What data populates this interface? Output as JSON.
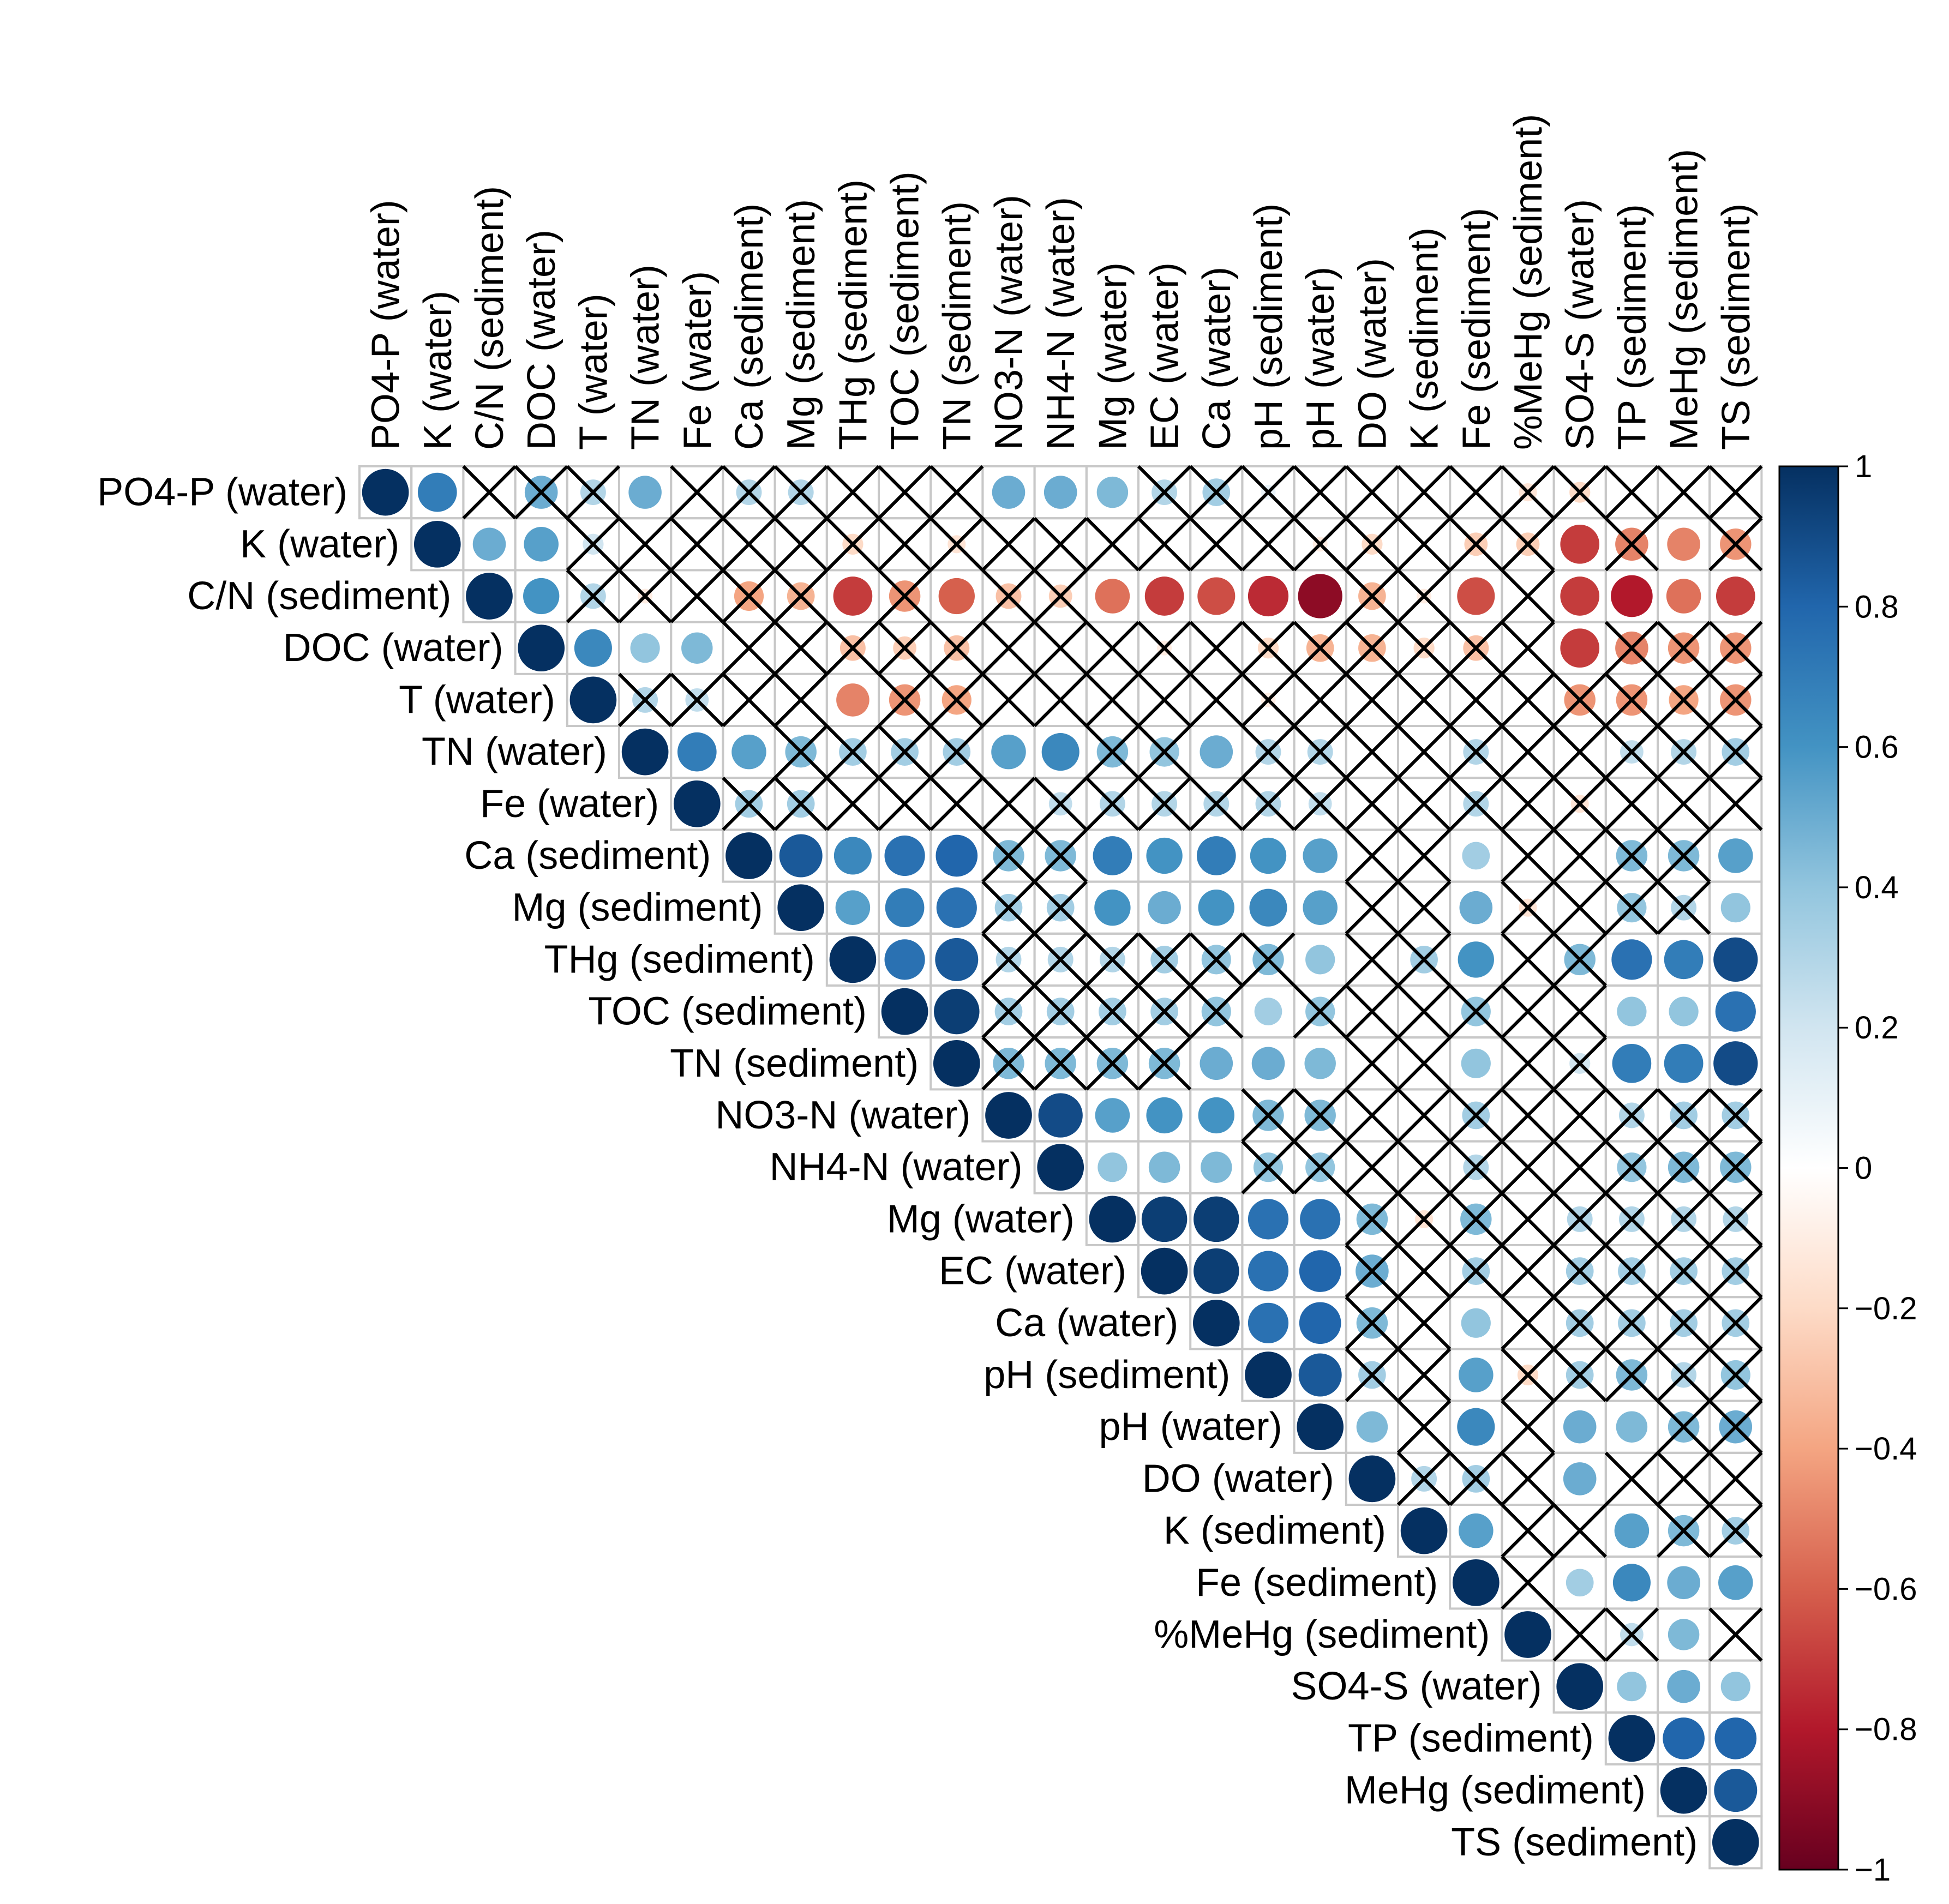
{
  "chart_data": {
    "type": "heatmap",
    "title": "",
    "xlabel": "",
    "ylabel": "",
    "variables": [
      "PO4-P (water)",
      "K (water)",
      "C/N (sediment)",
      "DOC (water)",
      "T (water)",
      "TN (water)",
      "Fe (water)",
      "Ca (sediment)",
      "Mg (sediment)",
      "THg (sediment)",
      "TOC (sediment)",
      "TN (sediment)",
      "NO3-N (water)",
      "NH4-N (water)",
      "Mg (water)",
      "EC (water)",
      "Ca (water)",
      "pH (sediment)",
      "pH (water)",
      "DO (water)",
      "K (sediment)",
      "Fe (sediment)",
      "%MeHg (sediment)",
      "SO4-S (water)",
      "TP (sediment)",
      "MeHg (sediment)",
      "TS (sediment)"
    ],
    "matrix_upper_triangle": [
      "1 0.7 0x 0.5x 0.3x 0.5 0x 0.3x 0.3x 0x 0x 0x 0.5 0.5 0.45 0.3x 0.35x 0.1x 0x 0x 0x 0x -0.15x -0.2x 0x 0x 0x",
      "1 0.5 0.55 0.2x 0x 0x 0x 0x -0.2x 0x -0.15x 0x 0x 0x 0x 0x 0x -0.1x -0.2x 0x -0.25x -0.25x -0.7 -0.5x -0.5 -0.45x",
      "1 0.6 0.3x -0.1x 0x -0.4x -0.35x -0.7 -0.45x -0.6 -0.3x -0.25x -0.55 -0.7 -0.65 -0.75 -0.9 -0.35x -0.1x -0.65 0x -0.7 -0.8 -0.55 -0.7",
      "1 0.65 0.4 0.45 0x 0x -0.3x -0.25x -0.3x 0x 0x 0x -0.1x 0x -0.2x -0.35x -0.35x -0.2x -0.3x 0x -0.7 -0.5x -0.45x -0.45x",
      "1 0.3x 0.25x 0x 0x -0.5 -0.45x -0.4x 0x 0x 0x 0x 0x -0.1x 0x 0x 0x 0x 0x -0.45x -0.45x -0.4x -0.45x",
      "1 0.7 0.55 0.45x 0.35x 0.35x 0.35x 0.55 0.65 0.45x 0.4x 0.5 0.3x 0.3x 0x 0x 0.3x 0x 0x 0.25x 0.3x 0.35x",
      "1 0.35x 0.35x 0x 0x 0x 0x 0.25x 0.3x 0.3x 0.3x 0.3x 0.25x 0x 0x 0.3x 0x -0.15x 0x 0x 0x",
      "1 0.85 0.65 0.75 0.8 0.45x 0.45x 0.7 0.6 0.7 0.6 0.55 0x 0x 0.35 0x 0x 0.45x 0.45x 0.55",
      "1 0.55 0.7 0.75 0.35x 0.35x 0.6 0.5 0.6 0.65 0.55 0x 0x 0.5 -0.15x 0x 0.4x 0.3x 0.4",
      "1 0.75 0.85 0.3x 0.3x 0.3x 0.35x 0.4x 0.45x 0.4 0x 0.35x 0.6 0x 0.45x 0.75 0.7 0.9",
      "1 0.95 0.35x 0.35x 0.35x 0.35x 0.4x 0.35 0.4x 0x 0x 0.4x 0x 0x 0.4 0.4 0.75",
      "1 0.45x 0.45x 0.45x 0.45x 0.5 0.5 0.45 0x 0x 0.4 0x 0.2x 0.7 0.7 0.9",
      "1 0.9 0.55 0.6 0.6 0.45x 0.45x 0x 0x 0.35x 0x 0x 0.3x 0.35x 0.35x",
      "1 0.4 0.45 0.45 0.4x 0.4x 0x 0x 0.3x 0x 0x 0.4x 0.45x 0.45x",
      "1 0.95 0.95 0.75 0.75 0.45x -0.15x 0.45x 0x 0.3x 0.3x 0.3x 0.3x",
      "1 0.95 0.75 0.8 0.5x 0x 0.35x 0x 0.35x 0.35x 0.35x 0.35x",
      "1 0.75 0.8 0.45x 0x 0.4 0x 0.35x 0.35x 0.35x 0.35x",
      "1 0.85 0.35x 0x 0.55 -0.2x 0.35x 0.45x 0.3x 0.4x",
      "1 0.45 0x 0.65 0x 0.5 0.45 0.45x 0.5x",
      "1 0.3x 0.35x 0x 0.5 0x 0x 0x",
      "1 0.55 0x 0x 0.55 0.45x 0.35x",
      "1 0x 0.35 0.65 0.5 0.55",
      "1 0x 0.25x 0.45 0x",
      "1 0.4 0.5 0.4",
      "1 0.8 0.8",
      "1 0.85",
      "1"
    ],
    "cross_marks_insignificant": true,
    "colorbar": {
      "range": [
        -1,
        1
      ],
      "ticks": [
        "1",
        "0.8",
        "0.6",
        "0.4",
        "0.2",
        "0",
        "−0.2",
        "−0.4",
        "−0.6",
        "−0.8",
        "−1"
      ],
      "tick_values": [
        1,
        0.8,
        0.6,
        0.4,
        0.2,
        0,
        -0.2,
        -0.4,
        -0.6,
        -0.8,
        -1
      ],
      "colors": [
        "#67001f",
        "#b2182b",
        "#d6604d",
        "#f4a582",
        "#fddbc7",
        "#ffffff",
        "#d1e5f0",
        "#92c5de",
        "#4393c3",
        "#2166ac",
        "#053061"
      ]
    }
  }
}
